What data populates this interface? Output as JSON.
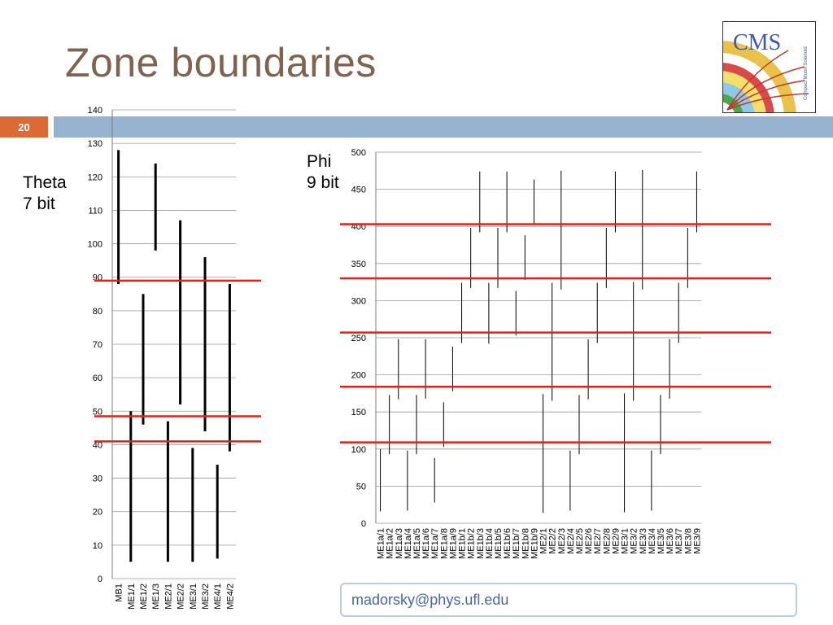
{
  "slide": {
    "title": "Zone boundaries",
    "page_number": "20",
    "theta_label_line1": "Theta",
    "theta_label_line2": "7 bit",
    "phi_label_line1": "Phi",
    "phi_label_line2": "9 bit",
    "email": "madorsky@phys.ufl.edu",
    "logo_text": "CMS",
    "logo_small_text": "Compact Muon Solenoid",
    "colors": {
      "title": "#7f6350",
      "header_bar": "#97b3cf",
      "page_badge": "#dc6a35",
      "boundary_line": "#e0201b",
      "email_text": "#4a66a8",
      "email_border": "#b9cde3"
    }
  },
  "chart_data": [
    {
      "type": "range",
      "name": "theta",
      "ylim": [
        0,
        140
      ],
      "yticks": [
        0,
        10,
        20,
        30,
        40,
        50,
        60,
        70,
        80,
        90,
        100,
        110,
        120,
        130,
        140
      ],
      "grid": true,
      "categories": [
        "MB1",
        "ME1/1",
        "ME1/2",
        "ME1/3",
        "ME2/1",
        "ME2/2",
        "ME3/1",
        "ME3/2",
        "ME4/1",
        "ME4/2"
      ],
      "ranges": [
        [
          88,
          128
        ],
        [
          5,
          50
        ],
        [
          46,
          85
        ],
        [
          98,
          124
        ],
        [
          5,
          47
        ],
        [
          52,
          107
        ],
        [
          5,
          39
        ],
        [
          44,
          96
        ],
        [
          6,
          34
        ],
        [
          38,
          88
        ]
      ],
      "boundaries": [
        89,
        48.5,
        41
      ]
    },
    {
      "type": "range",
      "name": "phi",
      "ylim": [
        0,
        500
      ],
      "yticks": [
        0,
        50,
        100,
        150,
        200,
        250,
        300,
        350,
        400,
        450,
        500
      ],
      "grid": true,
      "categories": [
        "ME1a/1",
        "ME1a/2",
        "ME1a/3",
        "ME1a/4",
        "ME1a/5",
        "ME1a/6",
        "ME1a/7",
        "ME1a/8",
        "ME1a/9",
        "ME1b/1",
        "ME1b/2",
        "ME1b/3",
        "ME1b/4",
        "ME1b/5",
        "ME1b/6",
        "ME1b/7",
        "ME1b/8",
        "ME1b/9",
        "ME2/1",
        "ME2/2",
        "ME2/3",
        "ME2/4",
        "ME2/5",
        "ME2/6",
        "ME2/7",
        "ME2/8",
        "ME2/9",
        "ME3/1",
        "ME3/2",
        "ME3/3",
        "ME3/4",
        "ME3/5",
        "ME3/6",
        "ME3/7",
        "ME3/8",
        "ME3/9"
      ],
      "ranges": [
        [
          16,
          100
        ],
        [
          93,
          173
        ],
        [
          167,
          248
        ],
        [
          17,
          98
        ],
        [
          93,
          173
        ],
        [
          168,
          248
        ],
        [
          28,
          88
        ],
        [
          103,
          163
        ],
        [
          178,
          238
        ],
        [
          243,
          324
        ],
        [
          317,
          398
        ],
        [
          392,
          474
        ],
        [
          242,
          324
        ],
        [
          317,
          398
        ],
        [
          392,
          474
        ],
        [
          253,
          313
        ],
        [
          328,
          388
        ],
        [
          403,
          463
        ],
        [
          14,
          174
        ],
        [
          165,
          324
        ],
        [
          315,
          475
        ],
        [
          17,
          98
        ],
        [
          93,
          173
        ],
        [
          167,
          248
        ],
        [
          243,
          324
        ],
        [
          317,
          398
        ],
        [
          392,
          474
        ],
        [
          15,
          175
        ],
        [
          165,
          325
        ],
        [
          315,
          476
        ],
        [
          17,
          98
        ],
        [
          93,
          173
        ],
        [
          168,
          248
        ],
        [
          243,
          324
        ],
        [
          317,
          398
        ],
        [
          392,
          474
        ]
      ],
      "boundaries": [
        403,
        330,
        257,
        184,
        109
      ]
    }
  ]
}
